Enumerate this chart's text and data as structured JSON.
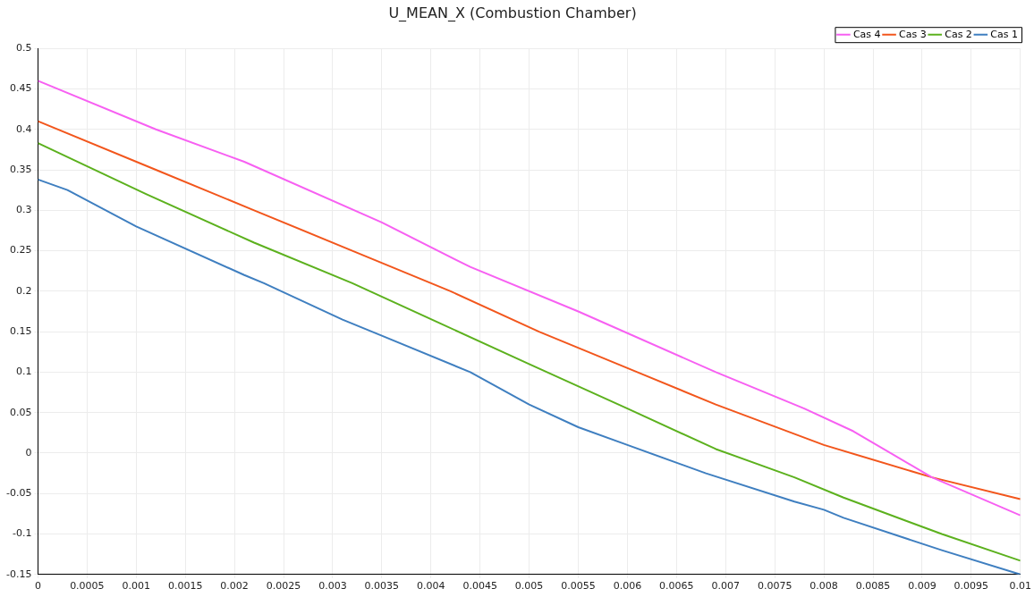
{
  "chart_data": {
    "type": "line",
    "title": "U_MEAN_X (Combustion Chamber)",
    "xlim": [
      0,
      0.01
    ],
    "xticks": [
      0,
      0.0005,
      0.001,
      0.0015,
      0.002,
      0.0025,
      0.003,
      0.0035,
      0.004,
      0.0045,
      0.005,
      0.0055,
      0.006,
      0.0065,
      0.007,
      0.0075,
      0.008,
      0.0085,
      0.009,
      0.0095,
      0.01
    ],
    "ylim": [
      -0.15,
      0.5
    ],
    "yticks": [
      -0.15,
      -0.1,
      -0.05,
      0,
      0.05,
      0.1,
      0.15,
      0.2,
      0.25,
      0.3,
      0.35,
      0.4,
      0.45,
      0.5
    ],
    "grid": true,
    "legend": "top right",
    "series": [
      {
        "name": "Cas 4",
        "color": "#f760f2",
        "x": [
          0,
          0.0012,
          0.0021,
          0.0035,
          0.0044,
          0.0055,
          0.0069,
          0.0078,
          0.0083,
          0.0091,
          0.01
        ],
        "values": [
          0.46,
          0.4,
          0.36,
          0.285,
          0.23,
          0.175,
          0.1,
          0.055,
          0.027,
          -0.03,
          -0.077
        ]
      },
      {
        "name": "Cas 3",
        "color": "#f2561c",
        "x": [
          0,
          0.0012,
          0.0022,
          0.0032,
          0.0042,
          0.0051,
          0.0061,
          0.0069,
          0.008,
          0.0091,
          0.01
        ],
        "values": [
          0.41,
          0.35,
          0.3,
          0.25,
          0.2,
          0.15,
          0.1,
          0.06,
          0.01,
          -0.03,
          -0.057
        ]
      },
      {
        "name": "Cas 2",
        "color": "#5cb11e",
        "x": [
          0,
          0.0011,
          0.0022,
          0.0032,
          0.0041,
          0.005,
          0.006,
          0.0069,
          0.0077,
          0.0082,
          0.0092,
          0.01
        ],
        "values": [
          0.383,
          0.32,
          0.26,
          0.21,
          0.16,
          0.11,
          0.055,
          0.005,
          -0.03,
          -0.055,
          -0.1,
          -0.133
        ]
      },
      {
        "name": "Cas 1",
        "color": "#3f7fc0",
        "x": [
          0,
          0.0003,
          0.001,
          0.0021,
          0.0023,
          0.0031,
          0.0035,
          0.0044,
          0.005,
          0.0055,
          0.006,
          0.0068,
          0.0077,
          0.008,
          0.0082,
          0.0092,
          0.01
        ],
        "values": [
          0.338,
          0.325,
          0.28,
          0.22,
          0.21,
          0.165,
          0.145,
          0.1,
          0.06,
          0.032,
          0.01,
          -0.025,
          -0.06,
          -0.07,
          -0.08,
          -0.12,
          -0.15
        ]
      }
    ]
  }
}
